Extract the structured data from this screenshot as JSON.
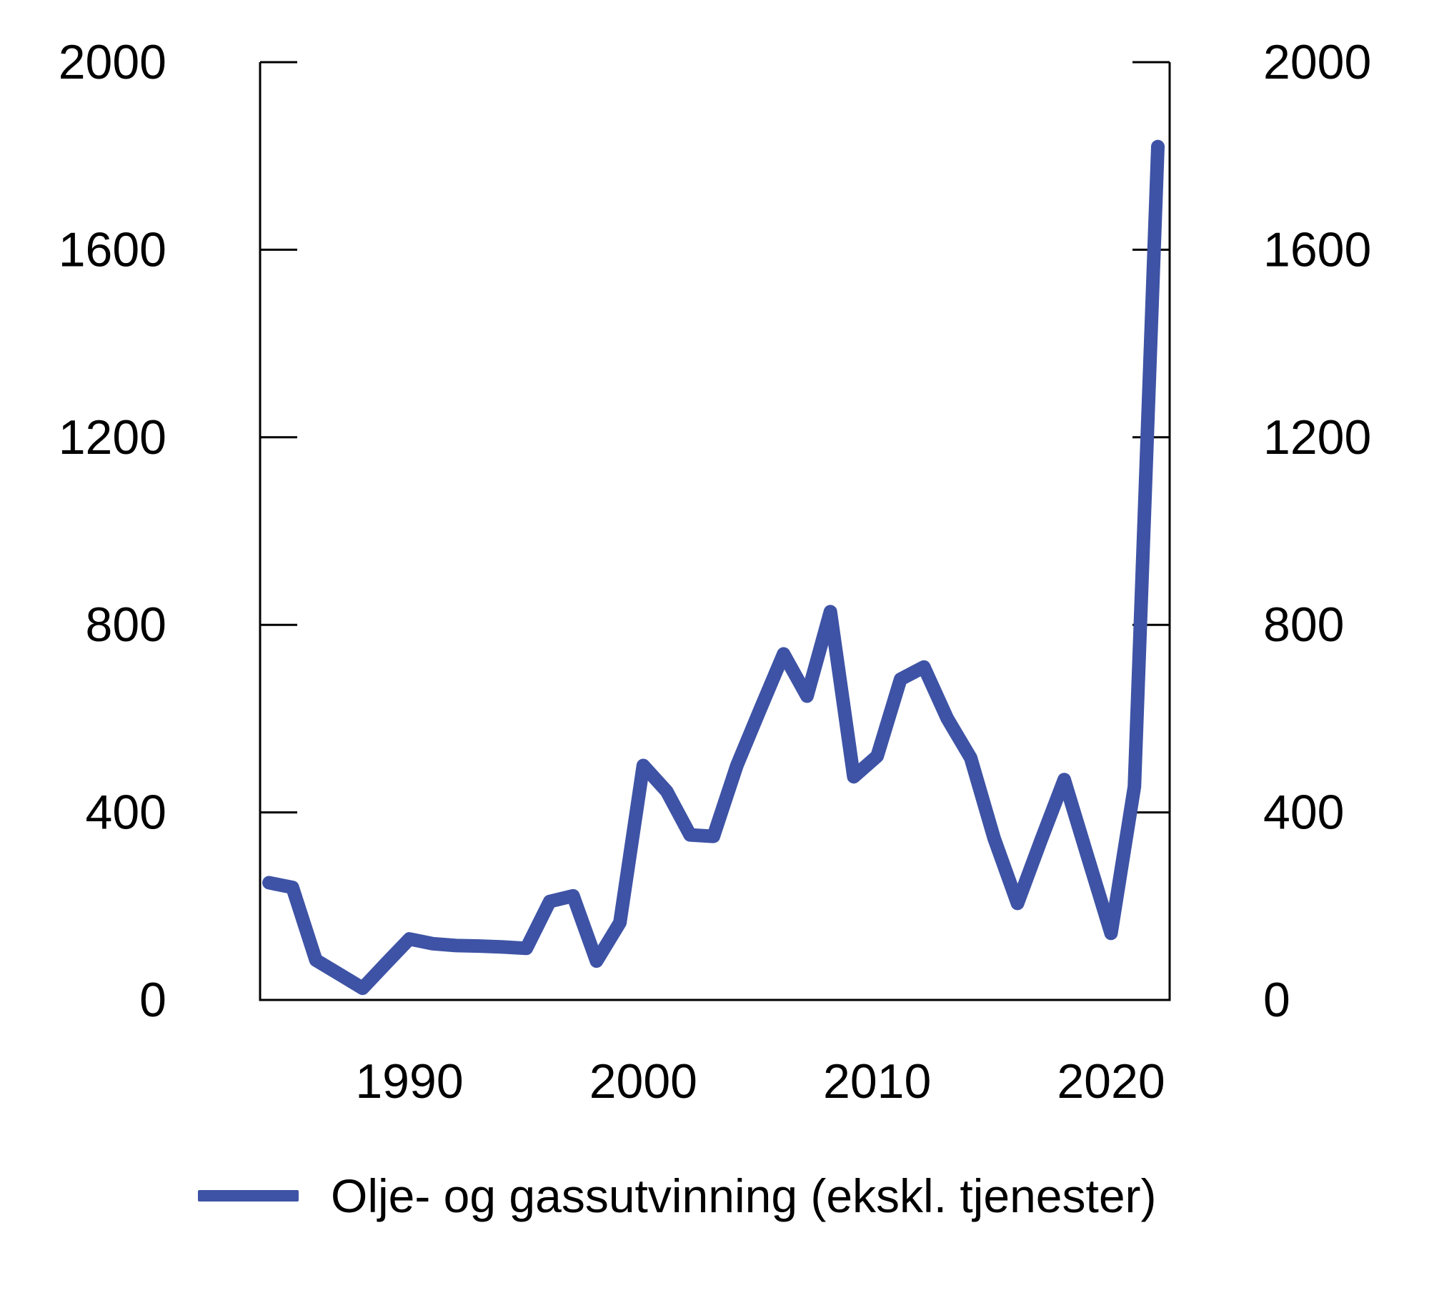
{
  "chart_data": {
    "type": "line",
    "title": "",
    "xlabel": "",
    "ylabel": "",
    "x": [
      1984,
      1985,
      1986,
      1987,
      1988,
      1989,
      1990,
      1991,
      1992,
      1993,
      1994,
      1995,
      1996,
      1997,
      1998,
      1999,
      2000,
      2001,
      2002,
      2003,
      2004,
      2005,
      2006,
      2007,
      2008,
      2009,
      2010,
      2011,
      2012,
      2013,
      2014,
      2015,
      2016,
      2017,
      2018,
      2019,
      2020,
      2021,
      2022
    ],
    "series": [
      {
        "name": "Olje- og gassutvinning (ekskl. tjenester)",
        "values": [
          250,
          240,
          85,
          55,
          25,
          78,
          130,
          120,
          116,
          115,
          113,
          110,
          210,
          222,
          83,
          165,
          500,
          445,
          352,
          349,
          500,
          620,
          738,
          648,
          828,
          476,
          520,
          684,
          710,
          600,
          516,
          345,
          206,
          340,
          470,
          305,
          142,
          455,
          1820
        ]
      }
    ],
    "ylim": [
      0,
      2000
    ],
    "xlim": [
      1983.6,
      2022.6
    ],
    "y_ticks": [
      0,
      400,
      800,
      1200,
      1600,
      2000
    ],
    "y_tick_labels": [
      "0",
      "400",
      "800",
      "1200",
      "1600",
      "2000"
    ],
    "y_axis_sides": [
      "left",
      "right"
    ],
    "x_tick_years": [
      1990,
      2000,
      2010,
      2020
    ],
    "x_tick_labels": [
      "1990",
      "2000",
      "2010",
      "2020"
    ],
    "grid": false,
    "legend_position": "bottom-left"
  },
  "legend": {
    "label": "Olje- og gassutvinning (ekskl. tjenester)"
  },
  "colors": {
    "line": "#3E53A5",
    "axis": "#000000",
    "text": "#000000",
    "background": "#FFFFFF"
  }
}
